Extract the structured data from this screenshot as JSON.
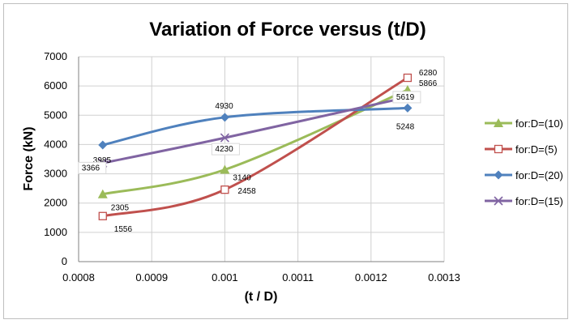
{
  "chart_data": {
    "type": "line",
    "title": "Variation of Force  versus (t/D)",
    "xlabel": "(t / D)",
    "ylabel": "Force (kN)",
    "xlim": [
      0.0008,
      0.0013
    ],
    "ylim": [
      0,
      7000
    ],
    "xticks": [
      0.0008,
      0.0009,
      0.001,
      0.0011,
      0.0012,
      0.0013
    ],
    "xtick_labels": [
      "0.0008",
      "0.0009",
      "0.001",
      "0.0011",
      "0.0012",
      "0.0013"
    ],
    "yticks": [
      0,
      1000,
      2000,
      3000,
      4000,
      5000,
      6000,
      7000
    ],
    "ytick_labels": [
      "0",
      "1000",
      "2000",
      "3000",
      "4000",
      "5000",
      "6000",
      "7000"
    ],
    "grid": true,
    "legend_position": "right",
    "series": [
      {
        "name": "for:D=(10)",
        "color": "#9bbb59",
        "marker": "triangle",
        "x": [
          0.000833,
          0.001,
          0.00125
        ],
        "y": [
          2305,
          3140,
          5866
        ],
        "labels": [
          "2305",
          "3140",
          "5866"
        ]
      },
      {
        "name": "for:D=(5)",
        "color": "#c0504d",
        "marker": "square-open",
        "x": [
          0.000833,
          0.001,
          0.00125
        ],
        "y": [
          1556,
          2458,
          6280
        ],
        "labels": [
          "1556",
          "2458",
          "6280"
        ]
      },
      {
        "name": "for:D=(20)",
        "color": "#4f81bd",
        "marker": "diamond",
        "x": [
          0.000833,
          0.001,
          0.00125
        ],
        "y": [
          3985,
          4930,
          5248
        ],
        "labels": [
          "3985",
          "4930",
          "5248"
        ]
      },
      {
        "name": "for:D=(15)",
        "color": "#8064a2",
        "marker": "x",
        "x": [
          0.000833,
          0.001,
          0.00125
        ],
        "y": [
          3366,
          4230,
          5619
        ],
        "labels": [
          "3366",
          "4230",
          "5619"
        ]
      }
    ]
  }
}
